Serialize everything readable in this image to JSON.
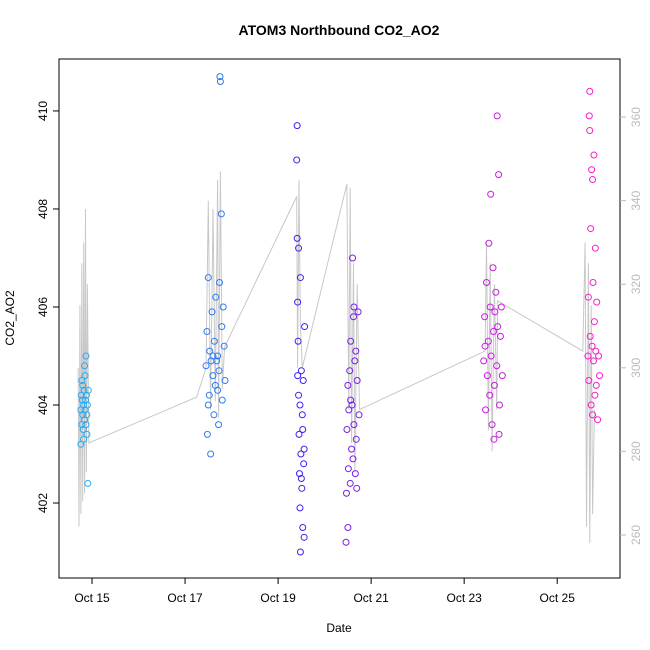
{
  "chart_data": {
    "type": "scatter",
    "title": "ATOM3 Northbound CO2_AO2",
    "xlabel": "Date",
    "ylabel": "CO2_AO2",
    "xlim": [
      14.29,
      26.35
    ],
    "ylim": [
      400.47,
      411.06
    ],
    "y2lim": [
      249.7,
      373.9
    ],
    "xticks": [
      {
        "value": 15,
        "label": "Oct 15"
      },
      {
        "value": 17,
        "label": "Oct 17"
      },
      {
        "value": 19,
        "label": "Oct 19"
      },
      {
        "value": 21,
        "label": "Oct 21"
      },
      {
        "value": 23,
        "label": "Oct 23"
      },
      {
        "value": 25,
        "label": "Oct 25"
      }
    ],
    "yticks": [
      402,
      404,
      406,
      408,
      410
    ],
    "y2ticks": [
      260,
      280,
      300,
      320,
      340,
      360
    ],
    "series": [
      {
        "type": "line",
        "axis": "y2",
        "color": "#c8c8c8",
        "x": [
          14.7,
          14.72,
          14.74,
          14.76,
          14.78,
          14.8,
          14.82,
          14.84,
          14.86,
          14.88,
          14.9,
          14.93,
          17.25,
          17.45,
          17.5,
          17.55,
          17.6,
          17.65,
          17.7,
          17.72,
          17.76,
          17.8,
          17.85,
          19.4,
          19.42,
          19.45,
          19.48,
          19.52,
          20.48,
          20.52,
          20.55,
          20.58,
          20.62,
          20.65,
          20.7,
          20.75,
          23.45,
          23.48,
          23.52,
          23.56,
          23.6,
          23.65,
          23.7,
          23.72,
          25.55,
          25.6,
          25.63,
          25.67,
          25.7,
          25.73,
          25.76,
          25.8
        ],
        "values": [
          300,
          262,
          315,
          265,
          325,
          268,
          330,
          270,
          338,
          275,
          320,
          282,
          293,
          300,
          340,
          290,
          338,
          292,
          345,
          288,
          347,
          295,
          305,
          341,
          300,
          345,
          310,
          300,
          344,
          290,
          343,
          282,
          325,
          275,
          320,
          290,
          304,
          330,
          285,
          325,
          280,
          320,
          290,
          316,
          304,
          330,
          262,
          325,
          258,
          315,
          265,
          290
        ]
      },
      {
        "color": "#2aaaf5",
        "x": [
          14.76,
          14.77,
          14.78,
          14.79,
          14.8,
          14.8,
          14.81,
          14.82,
          14.82,
          14.83,
          14.84,
          14.85,
          14.85,
          14.86,
          14.87,
          14.87,
          14.88,
          14.89,
          14.9,
          14.91,
          14.76,
          14.78,
          14.84,
          14.89,
          14.92
        ],
        "values": [
          403.9,
          404.2,
          403.6,
          404.1,
          403.8,
          404.4,
          403.5,
          404.0,
          403.3,
          404.3,
          403.7,
          404.6,
          403.9,
          404.1,
          403.6,
          405.0,
          404.2,
          403.4,
          404.0,
          402.4,
          403.2,
          404.5,
          404.8,
          403.8,
          404.3
        ]
      },
      {
        "color": "#2f7cf2",
        "x": [
          17.45,
          17.47,
          17.48,
          17.5,
          17.52,
          17.53,
          17.55,
          17.56,
          17.58,
          17.6,
          17.62,
          17.63,
          17.65,
          17.66,
          17.68,
          17.7,
          17.72,
          17.73,
          17.75,
          17.76,
          17.78,
          17.79,
          17.8,
          17.82,
          17.84,
          17.86,
          17.5,
          17.6,
          17.7,
          17.74
        ],
        "values": [
          404.8,
          405.5,
          403.4,
          406.6,
          404.2,
          405.1,
          403.0,
          404.9,
          405.9,
          404.6,
          403.8,
          405.3,
          404.4,
          406.2,
          404.9,
          405.0,
          403.6,
          404.7,
          410.7,
          410.6,
          407.9,
          405.6,
          404.1,
          406.0,
          405.2,
          404.5,
          404.0,
          405.0,
          404.3,
          406.5
        ]
      },
      {
        "color": "#3a22f0",
        "x": [
          19.4,
          19.41,
          19.42,
          19.43,
          19.44,
          19.45,
          19.46,
          19.47,
          19.48,
          19.49,
          19.5,
          19.51,
          19.52,
          19.53,
          19.54,
          19.55,
          19.56,
          19.57,
          19.41,
          19.44,
          19.47,
          19.5,
          19.53,
          19.56,
          19.42,
          19.48
        ],
        "values": [
          409.0,
          407.4,
          406.1,
          405.3,
          404.2,
          403.4,
          402.6,
          401.9,
          401.0,
          403.0,
          404.7,
          402.3,
          403.8,
          401.5,
          404.5,
          402.8,
          403.1,
          405.6,
          409.7,
          407.2,
          404.0,
          402.5,
          403.5,
          401.3,
          404.6,
          406.6
        ]
      },
      {
        "color": "#7a1fe8",
        "x": [
          20.46,
          20.47,
          20.48,
          20.5,
          20.51,
          20.52,
          20.54,
          20.55,
          20.56,
          20.58,
          20.59,
          20.6,
          20.61,
          20.62,
          20.63,
          20.65,
          20.66,
          20.67,
          20.68,
          20.7,
          20.72,
          20.74,
          20.5,
          20.56,
          20.63,
          20.69
        ],
        "values": [
          401.2,
          402.2,
          403.5,
          404.4,
          402.7,
          403.9,
          404.7,
          402.4,
          405.3,
          403.1,
          404.0,
          407.0,
          402.9,
          405.8,
          403.6,
          404.9,
          402.6,
          405.1,
          403.3,
          404.5,
          405.9,
          403.8,
          401.5,
          404.1,
          406.0,
          402.3
        ]
      },
      {
        "color": "#c81fe0",
        "x": [
          23.42,
          23.44,
          23.46,
          23.48,
          23.5,
          23.52,
          23.53,
          23.55,
          23.56,
          23.58,
          23.6,
          23.62,
          23.63,
          23.65,
          23.66,
          23.68,
          23.7,
          23.71,
          23.72,
          23.74,
          23.76,
          23.78,
          23.8,
          23.82,
          23.57,
          23.64,
          23.45,
          23.75
        ],
        "values": [
          404.9,
          405.8,
          403.9,
          406.5,
          404.6,
          405.3,
          407.3,
          404.2,
          406.0,
          405.0,
          403.6,
          406.8,
          405.5,
          404.4,
          405.9,
          406.3,
          404.8,
          409.9,
          405.6,
          408.7,
          404.0,
          405.4,
          406.0,
          404.6,
          408.3,
          403.3,
          405.2,
          403.4
        ]
      },
      {
        "color": "#f51fc8",
        "x": [
          25.66,
          25.67,
          25.68,
          25.69,
          25.7,
          25.71,
          25.72,
          25.73,
          25.74,
          25.75,
          25.76,
          25.77,
          25.78,
          25.79,
          25.8,
          25.81,
          25.82,
          25.83,
          25.85,
          25.87,
          25.89,
          25.91,
          25.7,
          25.76,
          25.84
        ],
        "values": [
          405.0,
          406.2,
          404.5,
          409.9,
          410.4,
          405.4,
          407.6,
          404.0,
          408.8,
          405.2,
          403.8,
          406.5,
          404.9,
          409.1,
          405.7,
          404.2,
          407.2,
          405.1,
          406.1,
          403.7,
          405.0,
          404.6,
          409.6,
          408.6,
          404.4
        ]
      }
    ]
  }
}
